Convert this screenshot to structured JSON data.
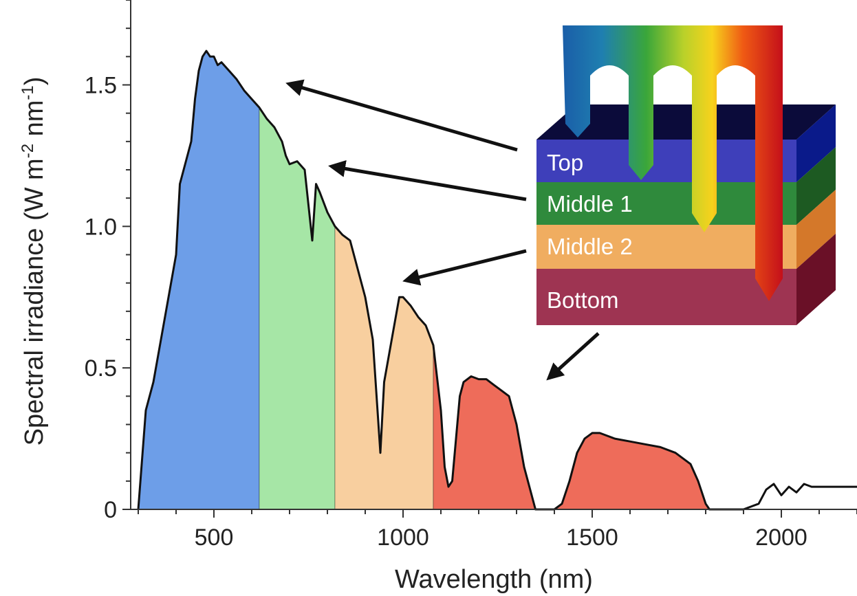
{
  "chart_data": {
    "type": "area",
    "xlabel": "Wavelength (nm)",
    "ylabel": "Spectral irradiance (W m-2 nm-1)",
    "ylabel_parts": {
      "base": "Spectral irradiance (W m",
      "exp1": "-2",
      "mid": " nm",
      "exp2": "-1",
      "end": ")"
    },
    "xlim": [
      280,
      2200
    ],
    "ylim": [
      0,
      1.8
    ],
    "x_ticks": [
      500,
      1000,
      1500,
      2000
    ],
    "x_tick_labels": [
      "500",
      "1000",
      "1500",
      "2000"
    ],
    "y_ticks": [
      0,
      0.5,
      1.0,
      1.5
    ],
    "y_tick_labels": [
      "0",
      "0.5",
      "1.0",
      "1.5"
    ],
    "grid": false,
    "spectrum": {
      "x": [
        300,
        320,
        340,
        360,
        380,
        400,
        410,
        420,
        430,
        440,
        450,
        460,
        470,
        480,
        490,
        500,
        510,
        520,
        540,
        560,
        580,
        600,
        620,
        640,
        660,
        680,
        690,
        700,
        720,
        740,
        760,
        770,
        780,
        800,
        820,
        840,
        860,
        880,
        900,
        920,
        930,
        940,
        950,
        970,
        990,
        1000,
        1020,
        1040,
        1060,
        1080,
        1100,
        1110,
        1120,
        1130,
        1140,
        1150,
        1160,
        1180,
        1200,
        1220,
        1240,
        1260,
        1280,
        1300,
        1320,
        1340,
        1350,
        1360,
        1380,
        1400,
        1420,
        1440,
        1460,
        1480,
        1500,
        1520,
        1540,
        1560,
        1600,
        1640,
        1680,
        1720,
        1760,
        1780,
        1800,
        1810,
        1820,
        1900,
        1940,
        1960,
        1980,
        2000,
        2020,
        2040,
        2060,
        2080,
        2100,
        2150,
        2200
      ],
      "y": [
        0.0,
        0.35,
        0.45,
        0.6,
        0.75,
        0.9,
        1.15,
        1.2,
        1.25,
        1.3,
        1.45,
        1.55,
        1.6,
        1.62,
        1.6,
        1.6,
        1.57,
        1.58,
        1.55,
        1.52,
        1.48,
        1.45,
        1.42,
        1.38,
        1.35,
        1.3,
        1.25,
        1.22,
        1.23,
        1.2,
        0.95,
        1.15,
        1.12,
        1.05,
        1.0,
        0.97,
        0.95,
        0.85,
        0.75,
        0.6,
        0.4,
        0.2,
        0.45,
        0.6,
        0.75,
        0.75,
        0.72,
        0.68,
        0.65,
        0.58,
        0.35,
        0.15,
        0.08,
        0.1,
        0.25,
        0.4,
        0.45,
        0.47,
        0.46,
        0.46,
        0.44,
        0.42,
        0.4,
        0.3,
        0.15,
        0.05,
        0.0,
        0.0,
        0.0,
        0.0,
        0.02,
        0.1,
        0.2,
        0.25,
        0.27,
        0.27,
        0.26,
        0.25,
        0.24,
        0.23,
        0.22,
        0.2,
        0.16,
        0.1,
        0.02,
        0.0,
        0.0,
        0.0,
        0.02,
        0.07,
        0.09,
        0.05,
        0.08,
        0.06,
        0.09,
        0.08,
        0.08,
        0.08,
        0.08
      ]
    },
    "bands": [
      {
        "name": "Top",
        "from": 300,
        "to": 620,
        "color": "#6d9ee8"
      },
      {
        "name": "Middle 1",
        "from": 620,
        "to": 820,
        "color": "#a6e6a6"
      },
      {
        "name": "Middle 2",
        "from": 820,
        "to": 1080,
        "color": "#f8cf9f"
      },
      {
        "name": "Bottom",
        "from": 1080,
        "to": 1900,
        "color": "#ee6c5a"
      }
    ],
    "cell_layers": [
      {
        "label": "Top",
        "color": "#3e3fba"
      },
      {
        "label": "Middle 1",
        "color": "#2f8a3c"
      },
      {
        "label": "Middle 2",
        "color": "#f0ad60"
      },
      {
        "label": "Bottom",
        "color": "#9e3452"
      }
    ],
    "arrow_targets": [
      {
        "layer": "Top",
        "x": 540,
        "y": 1.5
      },
      {
        "layer": "Middle 1",
        "x": 685,
        "y": 1.22
      },
      {
        "layer": "Middle 2",
        "x": 990,
        "y": 0.81
      },
      {
        "layer": "Bottom",
        "x": 1340,
        "y": 0.46
      }
    ]
  }
}
